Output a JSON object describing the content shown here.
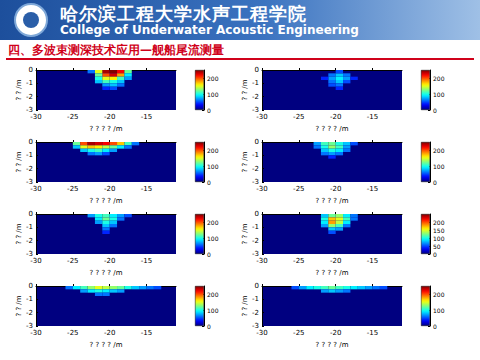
{
  "header": {
    "school_cn": "哈尔滨工程大学水声工程学院",
    "school_en": "College of Underwater Acoustic Engineering",
    "section_title": "四、多波束测深技术应用—舰船尾流测量"
  },
  "chart_data": [
    {
      "type": "heatmap",
      "x_label": "? ? ? ? /m",
      "y_label": "? ? /m",
      "xlim": [
        -30,
        -11
      ],
      "xticks": [
        -30,
        -25,
        -20,
        -15
      ],
      "ylim": [
        -3,
        0
      ],
      "yticks": [
        0,
        -1,
        -2,
        -3
      ],
      "cell_size": [
        1,
        0.25
      ],
      "cells": [
        [
          -20.5,
          -0.125,
          240
        ],
        [
          -19.5,
          -0.125,
          250
        ],
        [
          -18.5,
          -0.125,
          220
        ],
        [
          -21.5,
          -0.125,
          150
        ],
        [
          -17.5,
          -0.125,
          120
        ],
        [
          -20.5,
          -0.375,
          200
        ],
        [
          -19.5,
          -0.375,
          230
        ],
        [
          -18.5,
          -0.375,
          180
        ],
        [
          -21.5,
          -0.375,
          120
        ],
        [
          -17.5,
          -0.375,
          90
        ],
        [
          -21.5,
          -0.625,
          100
        ],
        [
          -20.5,
          -0.625,
          150
        ],
        [
          -19.5,
          -0.625,
          160
        ],
        [
          -18.5,
          -0.625,
          110
        ],
        [
          -17.5,
          -0.625,
          70
        ],
        [
          -21.5,
          -0.875,
          80
        ],
        [
          -20.5,
          -0.875,
          110
        ],
        [
          -19.5,
          -0.875,
          100
        ],
        [
          -18.5,
          -0.875,
          80
        ],
        [
          -20.5,
          -1.125,
          70
        ],
        [
          -19.5,
          -1.125,
          80
        ],
        [
          -18.5,
          -1.125,
          60
        ],
        [
          -19.5,
          -1.375,
          50
        ],
        [
          -20.5,
          -1.375,
          40
        ],
        [
          -22.5,
          -0.125,
          60
        ]
      ],
      "colorbar": {
        "range": [
          0,
          250
        ],
        "ticks": [
          0,
          100,
          200
        ]
      }
    },
    {
      "type": "heatmap",
      "x_label": "? ? ? ? /m",
      "y_label": "? ? /m",
      "xlim": [
        -30,
        -11
      ],
      "xticks": [
        -30,
        -25,
        -20,
        -15
      ],
      "ylim": [
        -3,
        0
      ],
      "yticks": [
        0,
        -1,
        -2,
        -3
      ],
      "cell_size": [
        1,
        0.25
      ],
      "cells": [
        [
          -20.5,
          -0.375,
          60
        ],
        [
          -19.5,
          -0.375,
          80
        ],
        [
          -18.5,
          -0.375,
          60
        ],
        [
          -20.5,
          -0.625,
          70
        ],
        [
          -19.5,
          -0.625,
          90
        ],
        [
          -18.5,
          -0.625,
          70
        ],
        [
          -21.5,
          -0.625,
          40
        ],
        [
          -20.5,
          -0.875,
          60
        ],
        [
          -19.5,
          -0.875,
          80
        ],
        [
          -18.5,
          -0.875,
          50
        ],
        [
          -20.5,
          -1.125,
          50
        ],
        [
          -19.5,
          -1.125,
          60
        ],
        [
          -19.5,
          -1.375,
          40
        ],
        [
          -17.5,
          -0.625,
          40
        ],
        [
          -19.5,
          -0.125,
          50
        ]
      ],
      "colorbar": {
        "range": [
          0,
          250
        ],
        "ticks": [
          0,
          100,
          200
        ]
      }
    },
    {
      "type": "heatmap",
      "x_label": "? ? ? ? /m",
      "y_label": "? ? /m",
      "xlim": [
        -30,
        -11
      ],
      "xticks": [
        -30,
        -25,
        -20,
        -15
      ],
      "ylim": [
        -3,
        0
      ],
      "yticks": [
        0,
        -1,
        -2,
        -3
      ],
      "cell_size": [
        1,
        0.25
      ],
      "cells": [
        [
          -24.5,
          -0.125,
          120
        ],
        [
          -23.5,
          -0.125,
          200
        ],
        [
          -22.5,
          -0.125,
          240
        ],
        [
          -21.5,
          -0.125,
          230
        ],
        [
          -20.5,
          -0.125,
          220
        ],
        [
          -19.5,
          -0.125,
          200
        ],
        [
          -18.5,
          -0.125,
          170
        ],
        [
          -17.5,
          -0.125,
          110
        ],
        [
          -16.5,
          -0.125,
          60
        ],
        [
          -24.5,
          -0.375,
          80
        ],
        [
          -23.5,
          -0.375,
          150
        ],
        [
          -22.5,
          -0.375,
          170
        ],
        [
          -21.5,
          -0.375,
          160
        ],
        [
          -20.5,
          -0.375,
          140
        ],
        [
          -19.5,
          -0.375,
          120
        ],
        [
          -18.5,
          -0.375,
          90
        ],
        [
          -17.5,
          -0.375,
          60
        ],
        [
          -23.5,
          -0.625,
          80
        ],
        [
          -22.5,
          -0.625,
          100
        ],
        [
          -21.5,
          -0.625,
          110
        ],
        [
          -20.5,
          -0.625,
          90
        ],
        [
          -19.5,
          -0.625,
          70
        ],
        [
          -22.5,
          -0.875,
          60
        ],
        [
          -21.5,
          -0.875,
          70
        ],
        [
          -20.5,
          -0.875,
          50
        ]
      ],
      "colorbar": {
        "range": [
          0,
          250
        ],
        "ticks": [
          0,
          100,
          200
        ]
      }
    },
    {
      "type": "heatmap",
      "x_label": "? ? ? ? /m",
      "y_label": "? ? /m",
      "xlim": [
        -30,
        -11
      ],
      "xticks": [
        -30,
        -25,
        -20,
        -15
      ],
      "ylim": [
        -3,
        0
      ],
      "yticks": [
        0,
        -1,
        -2,
        -3
      ],
      "cell_size": [
        1,
        0.25
      ],
      "cells": [
        [
          -22.5,
          -0.125,
          70
        ],
        [
          -21.5,
          -0.125,
          110
        ],
        [
          -20.5,
          -0.125,
          120
        ],
        [
          -19.5,
          -0.125,
          100
        ],
        [
          -18.5,
          -0.125,
          80
        ],
        [
          -17.5,
          -0.125,
          50
        ],
        [
          -22.5,
          -0.375,
          60
        ],
        [
          -21.5,
          -0.375,
          100
        ],
        [
          -20.5,
          -0.375,
          130
        ],
        [
          -19.5,
          -0.375,
          110
        ],
        [
          -18.5,
          -0.375,
          70
        ],
        [
          -21.5,
          -0.625,
          80
        ],
        [
          -20.5,
          -0.625,
          100
        ],
        [
          -19.5,
          -0.625,
          90
        ],
        [
          -18.5,
          -0.625,
          60
        ],
        [
          -21.5,
          -0.875,
          60
        ],
        [
          -20.5,
          -0.875,
          70
        ],
        [
          -19.5,
          -0.875,
          60
        ],
        [
          -20.5,
          -1.125,
          40
        ]
      ],
      "colorbar": {
        "range": [
          0,
          250
        ],
        "ticks": [
          0,
          100,
          200
        ]
      }
    },
    {
      "type": "heatmap",
      "x_label": "? ? ? ? /m",
      "y_label": "? ? /m",
      "xlim": [
        -30,
        -11
      ],
      "xticks": [
        -30,
        -25,
        -20,
        -15
      ],
      "ylim": [
        -3,
        0
      ],
      "yticks": [
        0,
        -1,
        -2,
        -3
      ],
      "cell_size": [
        1,
        0.25
      ],
      "cells": [
        [
          -22.5,
          -0.125,
          70
        ],
        [
          -21.5,
          -0.125,
          100
        ],
        [
          -20.5,
          -0.125,
          110
        ],
        [
          -19.5,
          -0.125,
          90
        ],
        [
          -18.5,
          -0.125,
          70
        ],
        [
          -17.5,
          -0.125,
          50
        ],
        [
          -21.5,
          -0.375,
          90
        ],
        [
          -20.5,
          -0.375,
          120
        ],
        [
          -19.5,
          -0.375,
          100
        ],
        [
          -18.5,
          -0.375,
          60
        ],
        [
          -21.5,
          -0.625,
          70
        ],
        [
          -20.5,
          -0.625,
          100
        ],
        [
          -19.5,
          -0.625,
          80
        ],
        [
          -20.5,
          -0.875,
          80
        ],
        [
          -19.5,
          -0.875,
          60
        ],
        [
          -20.5,
          -1.125,
          60
        ],
        [
          -20.5,
          -1.375,
          40
        ]
      ],
      "colorbar": {
        "range": [
          0,
          250
        ],
        "ticks": [
          0,
          100,
          200
        ]
      }
    },
    {
      "type": "heatmap",
      "x_label": "? ? ? ? /m",
      "y_label": "? ? /m",
      "xlim": [
        -30,
        -11
      ],
      "xticks": [
        -30,
        -25,
        -20,
        -15
      ],
      "ylim": [
        -3,
        0
      ],
      "yticks": [
        0,
        -1,
        -2,
        -3
      ],
      "cell_size": [
        1,
        0.25
      ],
      "cells": [
        [
          -21.5,
          -0.125,
          80
        ],
        [
          -20.5,
          -0.125,
          120
        ],
        [
          -19.5,
          -0.125,
          130
        ],
        [
          -18.5,
          -0.125,
          90
        ],
        [
          -17.5,
          -0.125,
          60
        ],
        [
          -21.5,
          -0.375,
          100
        ],
        [
          -20.5,
          -0.375,
          170
        ],
        [
          -19.5,
          -0.375,
          150
        ],
        [
          -18.5,
          -0.375,
          110
        ],
        [
          -17.5,
          -0.375,
          60
        ],
        [
          -21.5,
          -0.625,
          90
        ],
        [
          -20.5,
          -0.625,
          180
        ],
        [
          -19.5,
          -0.625,
          140
        ],
        [
          -18.5,
          -0.625,
          90
        ],
        [
          -21.5,
          -0.875,
          70
        ],
        [
          -20.5,
          -0.875,
          130
        ],
        [
          -19.5,
          -0.875,
          110
        ],
        [
          -18.5,
          -0.875,
          60
        ],
        [
          -20.5,
          -1.125,
          80
        ],
        [
          -19.5,
          -1.125,
          70
        ],
        [
          -20.5,
          -1.375,
          50
        ]
      ],
      "colorbar": {
        "range": [
          0,
          250
        ],
        "ticks": [
          0,
          50,
          100,
          150,
          200
        ]
      }
    },
    {
      "type": "heatmap",
      "x_label": "? ? ? ? /m",
      "y_label": "? ? /m",
      "xlim": [
        -30,
        -11
      ],
      "xticks": [
        -30,
        -25,
        -20,
        -15
      ],
      "ylim": [
        -3,
        0
      ],
      "yticks": [
        0,
        -1,
        -2,
        -3
      ],
      "cell_size": [
        1,
        0.25
      ],
      "cells": [
        [
          -25.5,
          -0.125,
          60
        ],
        [
          -24.5,
          -0.125,
          90
        ],
        [
          -23.5,
          -0.125,
          110
        ],
        [
          -22.5,
          -0.125,
          130
        ],
        [
          -21.5,
          -0.125,
          150
        ],
        [
          -20.5,
          -0.125,
          140
        ],
        [
          -19.5,
          -0.125,
          130
        ],
        [
          -18.5,
          -0.125,
          120
        ],
        [
          -17.5,
          -0.125,
          100
        ],
        [
          -16.5,
          -0.125,
          80
        ],
        [
          -15.5,
          -0.125,
          70
        ],
        [
          -14.5,
          -0.125,
          60
        ],
        [
          -13.5,
          -0.125,
          50
        ],
        [
          -23.5,
          -0.375,
          70
        ],
        [
          -22.5,
          -0.375,
          90
        ],
        [
          -21.5,
          -0.375,
          100
        ],
        [
          -20.5,
          -0.375,
          90
        ],
        [
          -19.5,
          -0.375,
          80
        ],
        [
          -18.5,
          -0.375,
          70
        ],
        [
          -21.5,
          -0.625,
          60
        ],
        [
          -20.5,
          -0.625,
          60
        ]
      ],
      "colorbar": {
        "range": [
          0,
          250
        ],
        "ticks": [
          0,
          100,
          200
        ]
      }
    },
    {
      "type": "heatmap",
      "x_label": "? ? ? ? /m",
      "y_label": "? ? /m",
      "xlim": [
        -30,
        -11
      ],
      "xticks": [
        -30,
        -25,
        -20,
        -15
      ],
      "ylim": [
        -3,
        0
      ],
      "yticks": [
        0,
        -1,
        -2,
        -3
      ],
      "cell_size": [
        1,
        0.25
      ],
      "cells": [
        [
          -25.5,
          -0.125,
          50
        ],
        [
          -24.5,
          -0.125,
          70
        ],
        [
          -23.5,
          -0.125,
          90
        ],
        [
          -22.5,
          -0.125,
          100
        ],
        [
          -21.5,
          -0.125,
          110
        ],
        [
          -20.5,
          -0.125,
          120
        ],
        [
          -19.5,
          -0.125,
          110
        ],
        [
          -18.5,
          -0.125,
          100
        ],
        [
          -17.5,
          -0.125,
          90
        ],
        [
          -16.5,
          -0.125,
          80
        ],
        [
          -15.5,
          -0.125,
          70
        ],
        [
          -14.5,
          -0.125,
          60
        ],
        [
          -13.5,
          -0.125,
          50
        ],
        [
          -21.5,
          -0.375,
          70
        ],
        [
          -20.5,
          -0.375,
          80
        ],
        [
          -19.5,
          -0.375,
          70
        ],
        [
          -18.5,
          -0.375,
          60
        ]
      ],
      "colorbar": {
        "range": [
          0,
          250
        ],
        "ticks": [
          0,
          100,
          200
        ]
      }
    }
  ]
}
